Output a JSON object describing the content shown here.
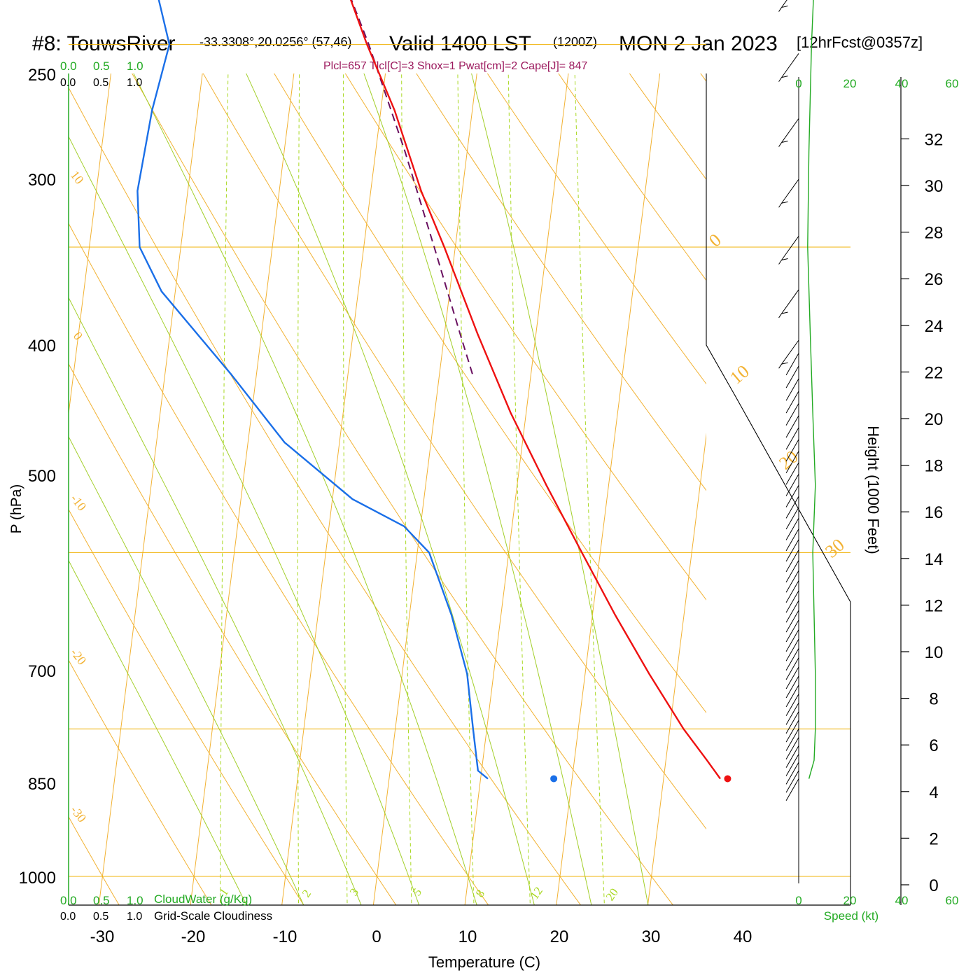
{
  "header": {
    "station": "#8: TouwsRiver",
    "coords": "-33.3308°,20.0256° (57,46)",
    "valid": "Valid 1400 LST",
    "zulu": "(1200Z)",
    "date": "MON 2 Jan 2023",
    "forecast": "[12hrFcst@0357z]",
    "indices": "Plcl=657 Tlcl[C]=3 Shox=1 Pwat[cm]=2 Cape[J]= 847"
  },
  "labels": {
    "pressure_axis": "P (hPa)",
    "temperature_axis": "Temperature (C)",
    "height_axis": "Height (1000 Feet)",
    "speed_axis": "Speed (kt)",
    "cloud_water": "CloudWater (g/Kg)",
    "cloudiness": "Grid-Scale Cloudiness"
  },
  "scale_ticks": {
    "cloud_top_green": [
      "0.0",
      "0.5",
      "1.0"
    ],
    "cloud_top_black": [
      "0.0",
      "0.5",
      "1.0"
    ],
    "cloud_bottom_green": [
      "0.0",
      "0.5",
      "1.0"
    ],
    "cloud_bottom_black": [
      "0.0",
      "0.5",
      "1.0"
    ],
    "speed_top": [
      "0",
      "20",
      "40",
      "60"
    ],
    "speed_bottom": [
      "0",
      "20",
      "40",
      "60"
    ]
  },
  "colors": {
    "isobar": "#f0b30a",
    "isotherm": "#f2b233",
    "dry_adiabat": "#b7d12a",
    "moist_adiabat": "#a3cf2a",
    "mixing_ratio": "#a8d820",
    "temperature": "#ee1111",
    "dewpoint": "#1a6fe8",
    "parcel": "#6a1060",
    "cloud_axis": "#22aa22",
    "wind_speed": "#22aa22"
  },
  "chart_data": {
    "type": "line",
    "diagram": "skew-T log-P",
    "pressure_ticks": [
      "250",
      "300",
      "400",
      "500",
      "700",
      "850",
      "1000"
    ],
    "temperature_ticks": [
      "-30",
      "-20",
      "-10",
      "0",
      "10",
      "20",
      "30",
      "40"
    ],
    "height_ticks": [
      "0",
      "2",
      "4",
      "6",
      "8",
      "10",
      "12",
      "14",
      "16",
      "18",
      "20",
      "22",
      "24",
      "26",
      "28",
      "30",
      "32"
    ],
    "isotherm_labels": [
      "10",
      "0",
      "-10",
      "-20",
      "-30",
      "0",
      "10",
      "20",
      "30"
    ],
    "mixing_ratio_labels": [
      "1",
      "2",
      "3",
      "5",
      "8",
      "12",
      "20"
    ],
    "series": [
      {
        "name": "temperature",
        "points": [
          {
            "p": 898,
            "t": 36.2
          },
          {
            "p": 880,
            "t": 34.5
          },
          {
            "p": 850,
            "t": 31.5
          },
          {
            "p": 800,
            "t": 27.0
          },
          {
            "p": 750,
            "t": 22.5
          },
          {
            "p": 700,
            "t": 18.0
          },
          {
            "p": 650,
            "t": 13.2
          },
          {
            "p": 600,
            "t": 8.3
          },
          {
            "p": 550,
            "t": 3.6
          },
          {
            "p": 500,
            "t": -1.2
          },
          {
            "p": 470,
            "t": -4.5
          },
          {
            "p": 430,
            "t": -8.5
          },
          {
            "p": 400,
            "t": -12.4
          },
          {
            "p": 360,
            "t": -17.5
          },
          {
            "p": 330,
            "t": -22.0
          },
          {
            "p": 300,
            "t": -27.3
          },
          {
            "p": 280,
            "t": -31.5
          },
          {
            "p": 265,
            "t": -35.0
          }
        ]
      },
      {
        "name": "dewpoint",
        "points": [
          {
            "p": 898,
            "t": 10.8
          },
          {
            "p": 890,
            "t": 9.6
          },
          {
            "p": 850,
            "t": 8.5
          },
          {
            "p": 800,
            "t": 7.1
          },
          {
            "p": 750,
            "t": 4.6
          },
          {
            "p": 700,
            "t": 1.3
          },
          {
            "p": 680,
            "t": -1.8
          },
          {
            "p": 660,
            "t": -7.8
          },
          {
            "p": 620,
            "t": -16.0
          },
          {
            "p": 575,
            "t": -22.8
          },
          {
            "p": 525,
            "t": -31.5
          },
          {
            "p": 500,
            "t": -34.5
          },
          {
            "p": 470,
            "t": -35.5
          },
          {
            "p": 430,
            "t": -35.0
          },
          {
            "p": 400,
            "t": -34.0
          },
          {
            "p": 370,
            "t": -36.8
          },
          {
            "p": 345,
            "t": -41.5
          },
          {
            "p": 325,
            "t": -46.0
          },
          {
            "p": 300,
            "t": -52.0
          },
          {
            "p": 265,
            "t": -57.0
          }
        ]
      },
      {
        "name": "parcel",
        "points": [
          {
            "p": 575,
            "t": 3.6
          },
          {
            "p": 550,
            "t": 1.7
          },
          {
            "p": 500,
            "t": -2.3
          },
          {
            "p": 450,
            "t": -6.8
          },
          {
            "p": 400,
            "t": -12.2
          },
          {
            "p": 350,
            "t": -19.0
          },
          {
            "p": 300,
            "t": -27.3
          },
          {
            "p": 265,
            "t": -34.2
          }
        ]
      }
    ],
    "surface_points": {
      "temperature": {
        "p": 898,
        "t": 37.0
      },
      "dewpoint": {
        "p": 898,
        "t": 18.0
      }
    },
    "wind_speed_kt": [
      {
        "p": 898,
        "v": 4
      },
      {
        "p": 880,
        "v": 6
      },
      {
        "p": 850,
        "v": 6.5
      },
      {
        "p": 800,
        "v": 6.5
      },
      {
        "p": 750,
        "v": 6
      },
      {
        "p": 700,
        "v": 5.5
      },
      {
        "p": 650,
        "v": 6.5
      },
      {
        "p": 600,
        "v": 5.5
      },
      {
        "p": 550,
        "v": 4.5
      },
      {
        "p": 500,
        "v": 3.5
      },
      {
        "p": 450,
        "v": 4
      },
      {
        "p": 400,
        "v": 5
      },
      {
        "p": 350,
        "v": 7
      },
      {
        "p": 300,
        "v": 9
      },
      {
        "p": 270,
        "v": 12
      },
      {
        "p": 258,
        "v": 13
      }
    ]
  }
}
